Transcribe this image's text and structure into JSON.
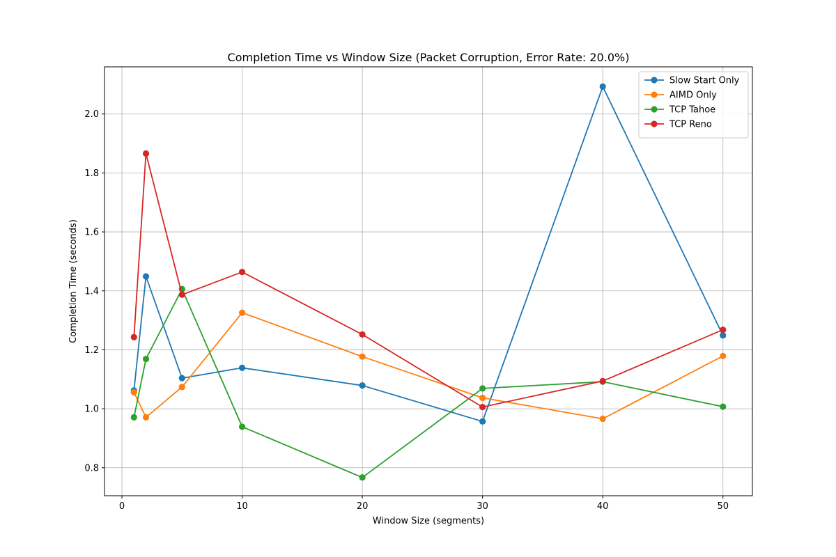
{
  "chart_data": {
    "type": "line",
    "title": "Completion Time vs Window Size (Packet Corruption, Error Rate: 20.0%)",
    "xlabel": "Window Size (segments)",
    "ylabel": "Completion Time (seconds)",
    "xlim": [
      -1.45,
      52.45
    ],
    "ylim": [
      0.705,
      2.16
    ],
    "xticks": [
      0,
      10,
      20,
      30,
      40,
      50
    ],
    "yticks": [
      0.8,
      1.0,
      1.2,
      1.4,
      1.6,
      1.8,
      2.0
    ],
    "ytick_labels": [
      "0.8",
      "1.0",
      "1.2",
      "1.4",
      "1.6",
      "1.8",
      "2.0"
    ],
    "grid": true,
    "legend_position": "top-right",
    "x": [
      1,
      2,
      5,
      10,
      20,
      30,
      40,
      50
    ],
    "series": [
      {
        "name": "Slow Start Only",
        "color": "#1f77b4",
        "values": [
          1.062,
          1.449,
          1.104,
          1.139,
          1.079,
          0.957,
          2.093,
          1.249
        ]
      },
      {
        "name": "AIMD Only",
        "color": "#ff7f0e",
        "values": [
          1.056,
          0.971,
          1.074,
          1.326,
          1.177,
          1.037,
          0.966,
          1.179
        ]
      },
      {
        "name": "TCP Tahoe",
        "color": "#2ca02c",
        "values": [
          0.971,
          1.169,
          1.406,
          0.939,
          0.767,
          1.069,
          1.092,
          1.007
        ]
      },
      {
        "name": "TCP Reno",
        "color": "#d62728",
        "values": [
          1.243,
          1.866,
          1.387,
          1.464,
          1.252,
          1.006,
          1.094,
          1.268
        ]
      }
    ]
  }
}
